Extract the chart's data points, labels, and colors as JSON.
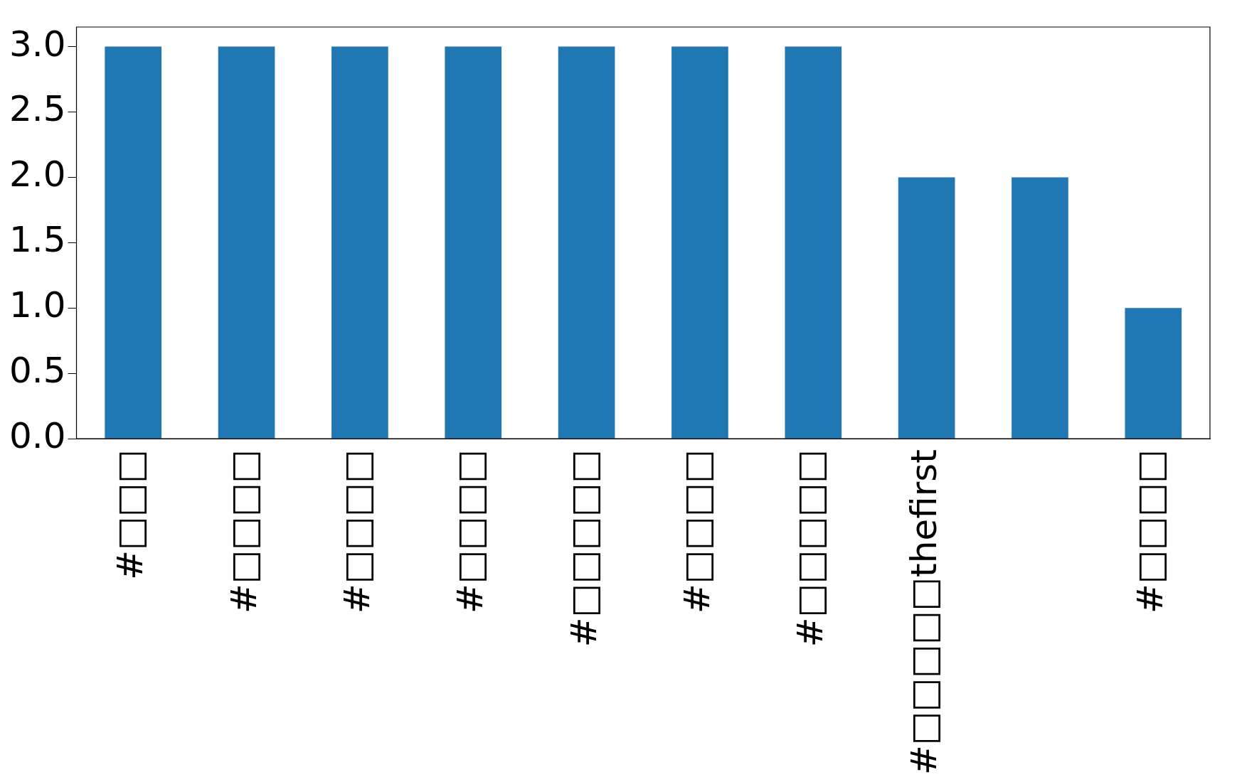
{
  "chart_data": {
    "type": "bar",
    "categories": [
      "#□□□",
      "#□□□□",
      "#□□□□",
      "#□□□□",
      "#□□□□□",
      "#□□□□",
      "#□□□□□",
      "#□□□□□thefirst",
      null,
      "#□□□□"
    ],
    "values": [
      3,
      3,
      3,
      3,
      3,
      3,
      3,
      2,
      2,
      1
    ],
    "color": "#1f77b4",
    "ylim": [
      0,
      3.15
    ],
    "yticks": [
      {
        "value": 0,
        "label": "0.0"
      },
      {
        "value": 0.5,
        "label": "0.5"
      },
      {
        "value": 1,
        "label": "1.0"
      },
      {
        "value": 1.5,
        "label": "1.5"
      },
      {
        "value": 2,
        "label": "2.0"
      },
      {
        "value": 2.5,
        "label": "2.5"
      },
      {
        "value": 3,
        "label": "3.0"
      }
    ],
    "grid": false,
    "legend": false
  }
}
